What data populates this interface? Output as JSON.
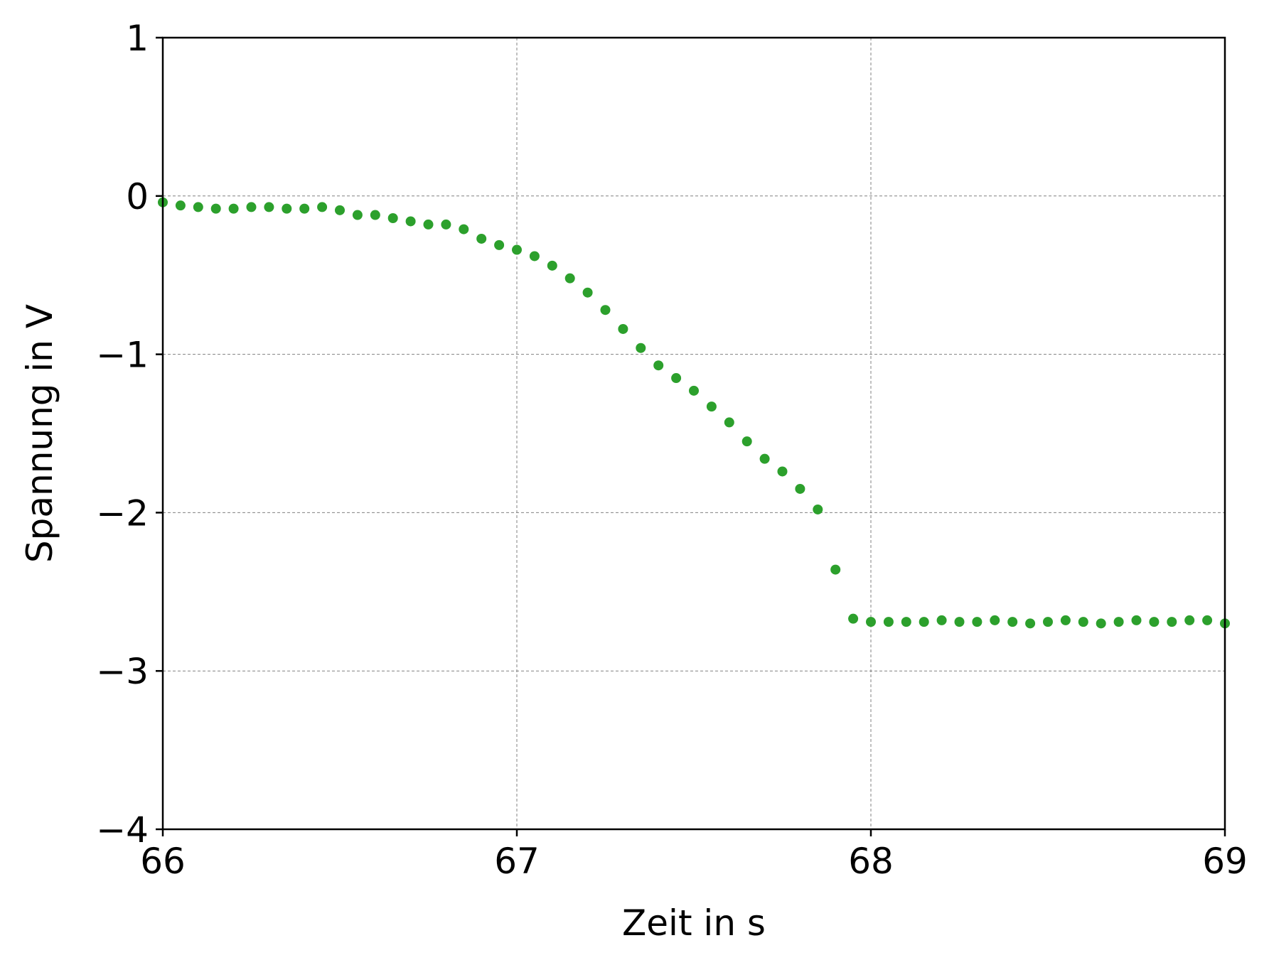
{
  "chart_data": {
    "type": "scatter",
    "xlabel": "Zeit in s",
    "ylabel": "Spannung in V",
    "xlim": [
      66,
      69
    ],
    "ylim": [
      -4,
      1
    ],
    "xticks": [
      66,
      67,
      68,
      69
    ],
    "xtick_labels": [
      "66",
      "67",
      "68",
      "69"
    ],
    "yticks": [
      1,
      0,
      -1,
      -2,
      -3,
      -4
    ],
    "ytick_labels": [
      "1",
      "0",
      "−1",
      "−2",
      "−3",
      "−4"
    ],
    "grid": true,
    "legend": "none",
    "color": "#2ca02c",
    "series": [
      {
        "x": [
          66.0,
          66.05,
          66.1,
          66.15,
          66.2,
          66.25,
          66.3,
          66.35,
          66.4,
          66.45,
          66.5,
          66.55,
          66.6,
          66.65,
          66.7,
          66.75,
          66.8,
          66.85,
          66.9,
          66.95,
          67.0,
          67.05,
          67.1,
          67.15,
          67.2,
          67.25,
          67.3,
          67.35,
          67.4,
          67.45,
          67.5,
          67.55,
          67.6,
          67.65,
          67.7,
          67.75,
          67.8,
          67.85,
          67.9,
          67.95,
          68.0,
          68.05,
          68.1,
          68.15,
          68.2,
          68.25,
          68.3,
          68.35,
          68.4,
          68.45,
          68.5,
          68.55,
          68.6,
          68.65,
          68.7,
          68.75,
          68.8,
          68.85,
          68.9,
          68.95,
          69.0
        ],
        "y": [
          -0.04,
          -0.06,
          -0.07,
          -0.08,
          -0.08,
          -0.07,
          -0.07,
          -0.08,
          -0.08,
          -0.07,
          -0.09,
          -0.12,
          -0.12,
          -0.14,
          -0.16,
          -0.18,
          -0.18,
          -0.21,
          -0.27,
          -0.31,
          -0.34,
          -0.38,
          -0.44,
          -0.52,
          -0.61,
          -0.72,
          -0.84,
          -0.96,
          -1.07,
          -1.15,
          -1.23,
          -1.33,
          -1.43,
          -1.55,
          -1.66,
          -1.74,
          -1.85,
          -1.98,
          -2.36,
          -2.67,
          -2.69,
          -2.69,
          -2.69,
          -2.69,
          -2.68,
          -2.69,
          -2.69,
          -2.68,
          -2.69,
          -2.7,
          -2.69,
          -2.68,
          -2.69,
          -2.7,
          -2.69,
          -2.68,
          -2.69,
          -2.69,
          -2.68,
          -2.68,
          -2.7
        ]
      }
    ]
  }
}
